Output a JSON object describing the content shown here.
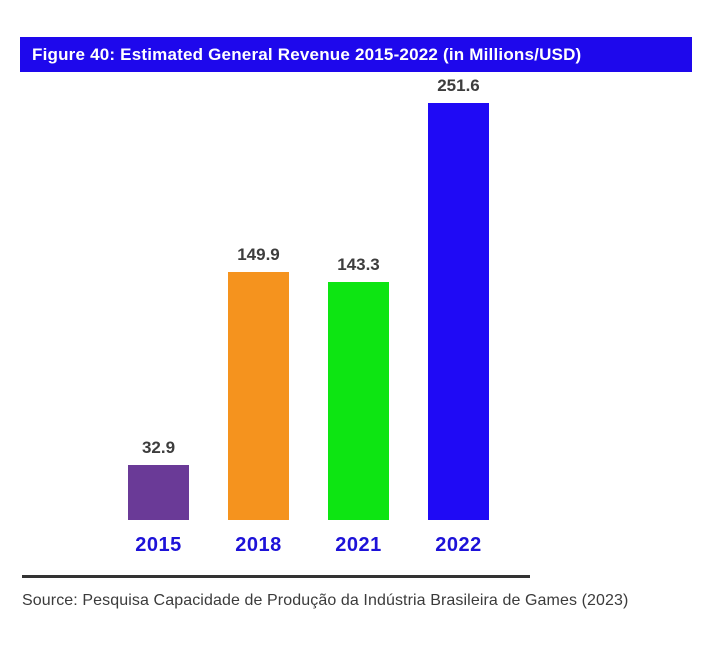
{
  "title_bar": {
    "text": "Figure 40: Estimated General Revenue 2015-2022 (in Millions/USD)",
    "bg_color": "#1e08ec",
    "text_color": "#ffffff"
  },
  "source": {
    "text": "Source: Pesquisa Capacidade de Produção da Indústria Brasileira de Games (2023)"
  },
  "colors": {
    "background": "#ffffff",
    "axis_label": "#1d12d8",
    "value_label": "#3d3d3d",
    "divider": "#333333"
  },
  "chart_data": {
    "type": "bar",
    "title": "Figure 40: Estimated General Revenue 2015-2022 (in Millions/USD)",
    "categories": [
      "2015",
      "2018",
      "2021",
      "2022"
    ],
    "values": [
      32.9,
      149.9,
      143.3,
      251.6
    ],
    "value_labels": [
      "32.9",
      "149.9",
      "143.3",
      "251.6"
    ],
    "bar_colors": [
      "#6a3a97",
      "#f5931e",
      "#0de512",
      "#1f0af5"
    ],
    "xlabel": "",
    "ylabel": "",
    "ylim": [
      0,
      260
    ],
    "grid": false,
    "legend": false,
    "units": "Millions USD"
  }
}
